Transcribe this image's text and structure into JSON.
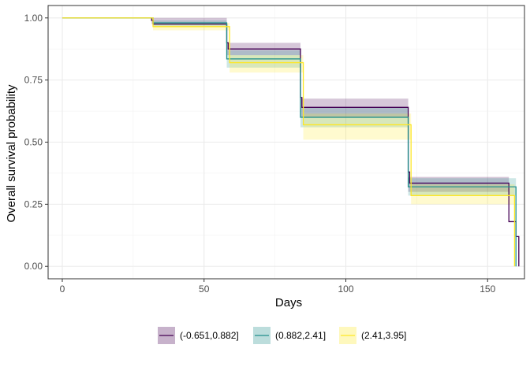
{
  "chart_data": {
    "type": "line",
    "subtype": "kaplan-meier step curves with confidence bands",
    "xlabel": "Days",
    "ylabel": "Overall survival probability",
    "xlim": [
      -5,
      163
    ],
    "ylim": [
      -0.05,
      1.05
    ],
    "x_ticks": [
      0,
      50,
      100,
      150
    ],
    "x_tick_labels": [
      "0",
      "50",
      "100",
      "150"
    ],
    "y_ticks": [
      0,
      0.25,
      0.5,
      0.75,
      1
    ],
    "y_tick_labels": [
      "0.00",
      "0.25",
      "0.50",
      "0.75",
      "1.00"
    ],
    "grid": true,
    "legend_position": "bottom",
    "series": [
      {
        "name": "(-0.651,0.882]",
        "color": "#440154",
        "fill": "rgba(68,1,84,0.22)",
        "steps": [
          [
            0,
            1.0
          ],
          [
            31.5,
            0.99
          ],
          [
            32,
            0.975
          ],
          [
            58,
            0.9
          ],
          [
            58.5,
            0.875
          ],
          [
            84,
            0.68
          ],
          [
            84.5,
            0.64
          ],
          [
            122,
            0.38
          ],
          [
            122.5,
            0.335
          ],
          [
            157.5,
            0.18
          ],
          [
            160,
            0.12
          ],
          [
            161,
            0.0
          ]
        ],
        "band": [
          [
            0,
            1.0,
            1.0
          ],
          [
            31.5,
            0.975,
            1.0
          ],
          [
            58,
            0.85,
            0.9
          ],
          [
            84,
            0.6,
            0.675
          ],
          [
            122,
            0.3,
            0.36
          ],
          [
            157.5,
            0.18,
            0.18
          ],
          [
            160,
            0.12,
            0.12
          ],
          [
            161,
            0.0,
            0.0
          ]
        ],
        "end_x": 161
      },
      {
        "name": "(0.882,2.41]",
        "color": "#21908C",
        "fill": "rgba(33,144,140,0.22)",
        "steps": [
          [
            0,
            1.0
          ],
          [
            32,
            0.98
          ],
          [
            58,
            0.835
          ],
          [
            84,
            0.6
          ],
          [
            122,
            0.32
          ],
          [
            160,
            0.0
          ]
        ],
        "band": [
          [
            0,
            1.0,
            1.0
          ],
          [
            32,
            0.965,
            0.99
          ],
          [
            58,
            0.8,
            0.87
          ],
          [
            84,
            0.56,
            0.64
          ],
          [
            122,
            0.285,
            0.355
          ],
          [
            160,
            0.0,
            0.0
          ]
        ],
        "end_x": 160
      },
      {
        "name": "(2.41,3.95]",
        "color": "#FDE725",
        "fill": "rgba(253,231,37,0.22)",
        "steps": [
          [
            0,
            1.0
          ],
          [
            32,
            0.965
          ],
          [
            59,
            0.82
          ],
          [
            85,
            0.57
          ],
          [
            123,
            0.285
          ],
          [
            159.5,
            0.0
          ]
        ],
        "band": [
          [
            0,
            1.0,
            1.0
          ],
          [
            32,
            0.95,
            0.98
          ],
          [
            59,
            0.78,
            0.85
          ],
          [
            85,
            0.51,
            0.615
          ],
          [
            123,
            0.25,
            0.33
          ],
          [
            159.5,
            0.0,
            0.0
          ]
        ],
        "end_x": 159.5
      }
    ]
  }
}
